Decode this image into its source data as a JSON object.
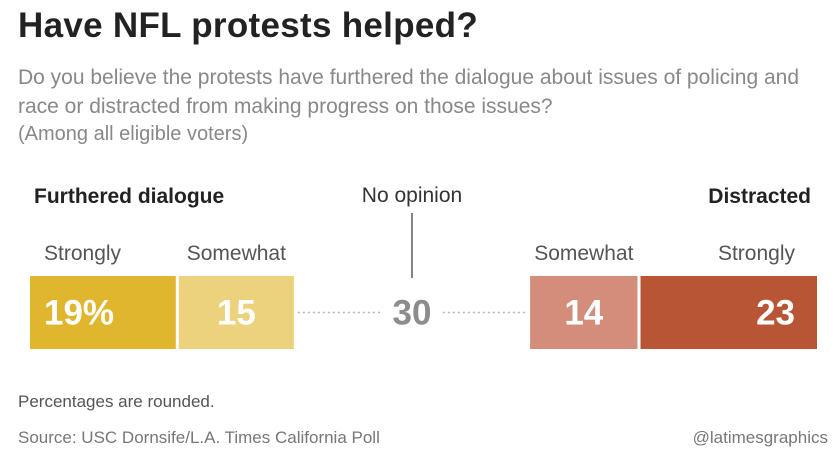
{
  "title": "Have NFL protests helped?",
  "subtitle": "Do you believe the protests have furthered the dialogue about issues of policing and race or distracted from making progress on those issues?",
  "population_note": "(Among all eligible voters)",
  "footnote": "Percentages are rounded.",
  "source": "Source: USC Dornsife/L.A. Times California Poll",
  "credit": "@latimesgraphics",
  "chart_data": {
    "type": "bar",
    "orientation": "horizontal-stacked",
    "unit": "%",
    "group_labels": {
      "left": "Furthered dialogue",
      "center": "No opinion",
      "right": "Distracted"
    },
    "segments": [
      {
        "group": "Furthered dialogue",
        "category": "Strongly",
        "value": 19,
        "display": "19%",
        "color": "#e0b62f",
        "text_color": "#ffffff"
      },
      {
        "group": "Furthered dialogue",
        "category": "Somewhat",
        "value": 15,
        "display": "15",
        "color": "#ecd27d",
        "text_color": "#ffffff"
      },
      {
        "group": "No opinion",
        "category": "",
        "value": 30,
        "display": "30",
        "color": "none",
        "text_color": "#8c8c8c"
      },
      {
        "group": "Distracted",
        "category": "Somewhat",
        "value": 14,
        "display": "14",
        "color": "#d48d7b",
        "text_color": "#ffffff"
      },
      {
        "group": "Distracted",
        "category": "Strongly",
        "value": 23,
        "display": "23",
        "color": "#b85534",
        "text_color": "#ffffff"
      }
    ]
  }
}
